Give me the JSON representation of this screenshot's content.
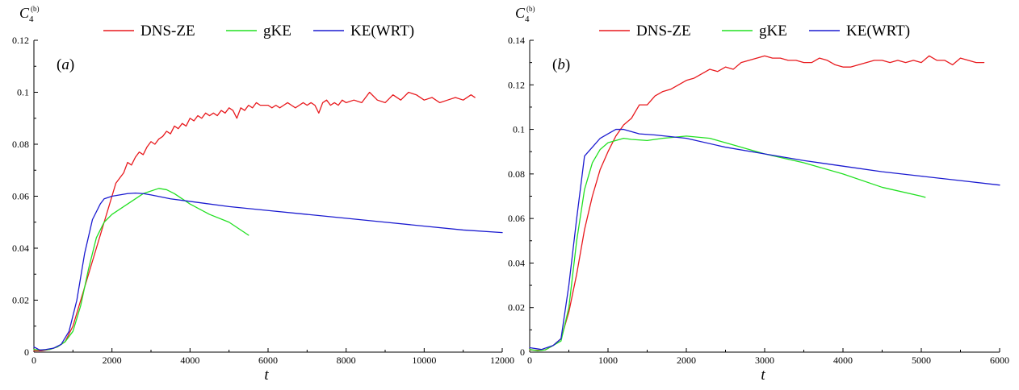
{
  "chart_data": [
    {
      "type": "line",
      "panel_label": "(a)",
      "xlabel": "t",
      "ylabel": {
        "main": "C",
        "sub": "4",
        "sup": "(b)"
      },
      "xlim": [
        0,
        12000
      ],
      "ylim": [
        0,
        0.12
      ],
      "xticks": [
        0,
        2000,
        4000,
        6000,
        8000,
        10000,
        12000
      ],
      "xtick_labels": [
        "0",
        "2000",
        "4000",
        "6000",
        "8000",
        "10000",
        "12000"
      ],
      "yticks": [
        0,
        0.02,
        0.04,
        0.06,
        0.08,
        0.1,
        0.12
      ],
      "ytick_labels": [
        "0",
        "0.02",
        "0.04",
        "0.06",
        "0.08",
        "0.1",
        "0.12"
      ],
      "grid": false,
      "legend_position": "top",
      "series": [
        {
          "name": "DNS-ZE",
          "color": "#e8191d",
          "x": [
            0,
            200,
            400,
            600,
            800,
            1000,
            1200,
            1400,
            1600,
            1800,
            2000,
            2100,
            2200,
            2300,
            2400,
            2500,
            2600,
            2700,
            2800,
            2900,
            3000,
            3100,
            3200,
            3300,
            3400,
            3500,
            3600,
            3700,
            3800,
            3900,
            4000,
            4100,
            4200,
            4300,
            4400,
            4500,
            4600,
            4700,
            4800,
            4900,
            5000,
            5100,
            5200,
            5300,
            5400,
            5500,
            5600,
            5700,
            5800,
            5900,
            6000,
            6100,
            6200,
            6300,
            6400,
            6500,
            6600,
            6700,
            6800,
            6900,
            7000,
            7100,
            7200,
            7300,
            7400,
            7500,
            7600,
            7700,
            7800,
            7900,
            8000,
            8200,
            8400,
            8600,
            8800,
            9000,
            9200,
            9400,
            9600,
            9800,
            10000,
            10200,
            10400,
            10600,
            10800,
            11000,
            11200,
            11300
          ],
          "y": [
            0.0005,
            0.0005,
            0.001,
            0.002,
            0.004,
            0.01,
            0.02,
            0.03,
            0.04,
            0.05,
            0.06,
            0.065,
            0.067,
            0.069,
            0.073,
            0.072,
            0.075,
            0.077,
            0.076,
            0.079,
            0.081,
            0.08,
            0.082,
            0.083,
            0.085,
            0.084,
            0.087,
            0.086,
            0.088,
            0.087,
            0.09,
            0.089,
            0.091,
            0.09,
            0.092,
            0.091,
            0.092,
            0.091,
            0.093,
            0.092,
            0.094,
            0.093,
            0.09,
            0.094,
            0.093,
            0.095,
            0.094,
            0.096,
            0.095,
            0.095,
            0.095,
            0.094,
            0.095,
            0.094,
            0.095,
            0.096,
            0.095,
            0.094,
            0.095,
            0.096,
            0.095,
            0.096,
            0.095,
            0.092,
            0.096,
            0.097,
            0.095,
            0.096,
            0.095,
            0.097,
            0.096,
            0.097,
            0.096,
            0.1,
            0.097,
            0.096,
            0.099,
            0.097,
            0.1,
            0.099,
            0.097,
            0.098,
            0.096,
            0.097,
            0.098,
            0.097,
            0.099,
            0.098
          ]
        },
        {
          "name": "gKE",
          "color": "#22e022",
          "x": [
            0,
            200,
            400,
            600,
            800,
            1000,
            1200,
            1400,
            1600,
            1800,
            2000,
            2400,
            2800,
            3200,
            3400,
            3600,
            4000,
            4500,
            5000,
            5500
          ],
          "y": [
            0.001,
            0.0008,
            0.001,
            0.002,
            0.004,
            0.008,
            0.018,
            0.032,
            0.044,
            0.05,
            0.053,
            0.057,
            0.061,
            0.063,
            0.0625,
            0.061,
            0.057,
            0.053,
            0.05,
            0.045
          ]
        },
        {
          "name": "KE(WRT)",
          "color": "#1b1bd0",
          "x": [
            0,
            150,
            300,
            500,
            700,
            900,
            1100,
            1300,
            1500,
            1700,
            1800,
            2000,
            2200,
            2400,
            2600,
            2800,
            3000,
            3500,
            4000,
            5000,
            6000,
            7000,
            8000,
            9000,
            10000,
            11000,
            12000
          ],
          "y": [
            0.002,
            0.0008,
            0.001,
            0.0015,
            0.003,
            0.008,
            0.02,
            0.038,
            0.051,
            0.057,
            0.059,
            0.06,
            0.0605,
            0.061,
            0.0612,
            0.061,
            0.0605,
            0.059,
            0.058,
            0.056,
            0.0545,
            0.053,
            0.0515,
            0.05,
            0.0485,
            0.047,
            0.046
          ]
        }
      ]
    },
    {
      "type": "line",
      "panel_label": "(b)",
      "xlabel": "t",
      "ylabel": {
        "main": "C",
        "sub": "4",
        "sup": "(b)"
      },
      "xlim": [
        0,
        6000
      ],
      "ylim": [
        0,
        0.14
      ],
      "xticks": [
        0,
        1000,
        2000,
        3000,
        4000,
        5000,
        6000
      ],
      "xtick_labels": [
        "0",
        "1000",
        "2000",
        "3000",
        "4000",
        "5000",
        "6000"
      ],
      "yticks": [
        0,
        0.02,
        0.04,
        0.06,
        0.08,
        0.1,
        0.12,
        0.14
      ],
      "ytick_labels": [
        "0",
        "0.02",
        "0.04",
        "0.06",
        "0.08",
        "0.1",
        "0.12",
        "0.14"
      ],
      "grid": false,
      "legend_position": "top",
      "series": [
        {
          "name": "DNS-ZE",
          "color": "#e8191d",
          "x": [
            0,
            100,
            200,
            300,
            400,
            500,
            600,
            700,
            800,
            900,
            1000,
            1100,
            1200,
            1300,
            1350,
            1400,
            1450,
            1500,
            1600,
            1700,
            1800,
            1900,
            2000,
            2100,
            2200,
            2300,
            2400,
            2500,
            2600,
            2700,
            2800,
            2900,
            3000,
            3100,
            3200,
            3300,
            3400,
            3500,
            3600,
            3700,
            3800,
            3900,
            4000,
            4100,
            4200,
            4300,
            4400,
            4500,
            4600,
            4700,
            4800,
            4900,
            5000,
            5100,
            5200,
            5300,
            5400,
            5500,
            5600,
            5700,
            5800
          ],
          "y": [
            0.001,
            0.0008,
            0.001,
            0.003,
            0.006,
            0.018,
            0.035,
            0.055,
            0.07,
            0.082,
            0.09,
            0.097,
            0.102,
            0.105,
            0.108,
            0.111,
            0.111,
            0.111,
            0.115,
            0.117,
            0.118,
            0.12,
            0.122,
            0.123,
            0.125,
            0.127,
            0.126,
            0.128,
            0.127,
            0.13,
            0.131,
            0.132,
            0.133,
            0.132,
            0.132,
            0.131,
            0.131,
            0.13,
            0.13,
            0.132,
            0.131,
            0.129,
            0.128,
            0.128,
            0.129,
            0.13,
            0.131,
            0.131,
            0.13,
            0.131,
            0.13,
            0.131,
            0.13,
            0.133,
            0.131,
            0.131,
            0.129,
            0.132,
            0.131,
            0.13,
            0.13
          ]
        },
        {
          "name": "gKE",
          "color": "#22e022",
          "x": [
            0,
            100,
            200,
            300,
            400,
            500,
            600,
            700,
            800,
            900,
            1000,
            1100,
            1200,
            1300,
            1500,
            1700,
            2000,
            2300,
            2600,
            3000,
            3500,
            4000,
            4500,
            5000,
            5050
          ],
          "y": [
            0.0012,
            0.0006,
            0.001,
            0.003,
            0.005,
            0.02,
            0.05,
            0.073,
            0.085,
            0.091,
            0.094,
            0.095,
            0.096,
            0.0955,
            0.095,
            0.096,
            0.097,
            0.096,
            0.093,
            0.089,
            0.085,
            0.08,
            0.074,
            0.07,
            0.0695
          ]
        },
        {
          "name": "KE(WRT)",
          "color": "#1b1bd0",
          "x": [
            0,
            150,
            300,
            400,
            500,
            600,
            700,
            800,
            900,
            1000,
            1100,
            1200,
            1300,
            1400,
            1600,
            2000,
            2500,
            3000,
            3500,
            4000,
            4500,
            5000,
            5500,
            6000
          ],
          "y": [
            0.002,
            0.0012,
            0.003,
            0.006,
            0.03,
            0.06,
            0.088,
            0.092,
            0.096,
            0.098,
            0.1,
            0.1,
            0.099,
            0.098,
            0.0975,
            0.096,
            0.092,
            0.089,
            0.086,
            0.0835,
            0.081,
            0.079,
            0.077,
            0.075
          ]
        }
      ]
    }
  ]
}
